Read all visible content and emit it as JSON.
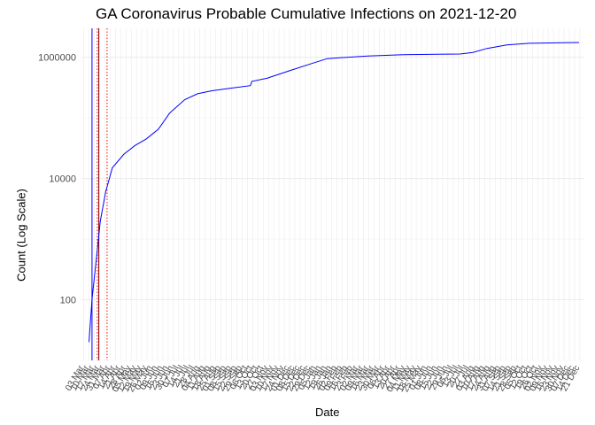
{
  "chart_data": {
    "type": "line",
    "title": "GA Coronavirus Probable Cumulative Infections on 2021-12-20",
    "xlabel": "Date",
    "ylabel": "Count (Log Scale)",
    "y_scale": "log10",
    "y_ticks": [
      100,
      10000,
      1000000
    ],
    "y_tick_labels": [
      "100",
      "10000",
      "1000000"
    ],
    "ylim": [
      10,
      3000000
    ],
    "xlim": [
      "2020-02-29",
      "2021-12-27"
    ],
    "grid": true,
    "legend": "none",
    "x_tick_labels_note": "weekly date tick labels rendered at 60 degrees, overlapping and largely illegible",
    "x_tick_labels_legible": [
      "03 Feb",
      "10 Jan"
    ],
    "vertical_lines": [
      {
        "date": "2020-03-14",
        "color": "#0000ff",
        "style": "solid"
      },
      {
        "date": "2020-03-23",
        "color": "#8b0000",
        "style": "solid"
      },
      {
        "date": "2020-03-21",
        "color": "#ff0000",
        "style": "dotted"
      },
      {
        "date": "2020-04-03",
        "color": "#ff0000",
        "style": "dotted"
      }
    ],
    "series": [
      {
        "color": "#0000ff",
        "points": [
          [
            "2020-03-10",
            20
          ],
          [
            "2020-03-14",
            100
          ],
          [
            "2020-03-20",
            500
          ],
          [
            "2020-03-25",
            2000
          ],
          [
            "2020-04-01",
            6000
          ],
          [
            "2020-04-10",
            15000
          ],
          [
            "2020-04-25",
            25000
          ],
          [
            "2020-05-10",
            35000
          ],
          [
            "2020-05-25",
            45000
          ],
          [
            "2020-06-10",
            65000
          ],
          [
            "2020-06-25",
            120000
          ],
          [
            "2020-07-15",
            200000
          ],
          [
            "2020-08-01",
            250000
          ],
          [
            "2020-08-20",
            280000
          ],
          [
            "2020-09-15",
            310000
          ],
          [
            "2020-10-10",
            340000
          ],
          [
            "2020-10-12",
            400000
          ],
          [
            "2020-11-01",
            450000
          ],
          [
            "2020-12-01",
            600000
          ],
          [
            "2021-01-01",
            800000
          ],
          [
            "2021-01-20",
            950000
          ],
          [
            "2021-02-15",
            1000000
          ],
          [
            "2021-03-15",
            1050000
          ],
          [
            "2021-05-01",
            1100000
          ],
          [
            "2021-06-15",
            1120000
          ],
          [
            "2021-07-15",
            1130000
          ],
          [
            "2021-08-01",
            1200000
          ],
          [
            "2021-08-20",
            1400000
          ],
          [
            "2021-09-15",
            1600000
          ],
          [
            "2021-10-15",
            1700000
          ],
          [
            "2021-12-20",
            1750000
          ]
        ]
      }
    ]
  }
}
